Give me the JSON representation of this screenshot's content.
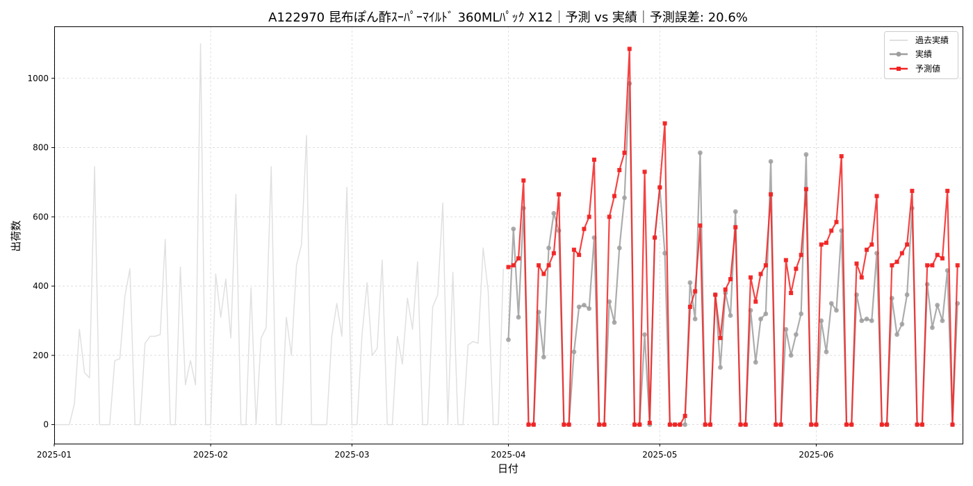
{
  "chart_data": {
    "type": "line",
    "title": "A122970 昆布ぽん酢ｽｰﾊﾟｰﾏｲﾙﾄﾞ 360MLﾊﾟｯｸ X12｜予測 vs 実績｜予測誤差: 20.6%",
    "xlabel": "日付",
    "ylabel": "出荷数",
    "xlim": [
      "2025-01-01",
      "2025-06-30"
    ],
    "ylim": [
      -55,
      1150
    ],
    "x_ticks": [
      "2025-01",
      "2025-02",
      "2025-03",
      "2025-04",
      "2025-05",
      "2025-06"
    ],
    "y_ticks": [
      0,
      200,
      400,
      600,
      800,
      1000
    ],
    "grid": true,
    "legend_position": "top-right",
    "series": [
      {
        "name": "過去実績",
        "color": "#e0e0e0",
        "start": "2025-01-01",
        "values": [
          0,
          0,
          0,
          0,
          60,
          275,
          150,
          135,
          745,
          0,
          0,
          0,
          185,
          190,
          370,
          450,
          0,
          0,
          235,
          255,
          255,
          260,
          535,
          0,
          0,
          455,
          115,
          185,
          115,
          1100,
          0,
          0,
          435,
          310,
          420,
          250,
          665,
          0,
          0,
          395,
          0,
          250,
          280,
          745,
          0,
          0,
          310,
          200,
          460,
          520,
          835,
          0,
          0,
          0,
          0,
          255,
          350,
          255,
          685,
          0,
          0,
          260,
          410,
          200,
          220,
          475,
          0,
          0,
          255,
          175,
          365,
          275,
          470,
          0,
          0,
          340,
          375,
          640,
          0,
          440,
          0,
          0,
          230,
          240,
          235,
          510,
          385,
          0,
          0,
          450
        ]
      },
      {
        "name": "実績",
        "color": "#9e9e9e",
        "marker": "circle",
        "start": "2025-04-01",
        "values": [
          245,
          565,
          310,
          625,
          0,
          0,
          325,
          195,
          510,
          610,
          560,
          0,
          0,
          210,
          340,
          345,
          335,
          540,
          0,
          0,
          355,
          295,
          510,
          655,
          985,
          0,
          0,
          260,
          0,
          540,
          685,
          495,
          0,
          0,
          0,
          0,
          410,
          305,
          785,
          0,
          0,
          375,
          165,
          380,
          315,
          615,
          0,
          0,
          330,
          180,
          305,
          320,
          760,
          0,
          0,
          275,
          200,
          260,
          320,
          780,
          0,
          0,
          300,
          210,
          350,
          330,
          560,
          0,
          0,
          375,
          300,
          305,
          300,
          495,
          0,
          0,
          365,
          260,
          290,
          375,
          625,
          0,
          0,
          405,
          280,
          345,
          300,
          445,
          0,
          350
        ]
      },
      {
        "name": "予測値",
        "color": "#f22222",
        "marker": "square",
        "start": "2025-04-01",
        "values": [
          455,
          460,
          480,
          705,
          0,
          0,
          460,
          435,
          460,
          495,
          665,
          0,
          0,
          505,
          490,
          565,
          600,
          765,
          0,
          0,
          600,
          660,
          735,
          785,
          1085,
          0,
          0,
          730,
          5,
          540,
          685,
          870,
          0,
          0,
          0,
          25,
          340,
          385,
          575,
          0,
          0,
          375,
          250,
          390,
          420,
          570,
          0,
          0,
          425,
          355,
          435,
          460,
          665,
          0,
          0,
          475,
          380,
          450,
          490,
          680,
          0,
          0,
          520,
          525,
          560,
          585,
          775,
          0,
          0,
          465,
          425,
          505,
          520,
          660,
          0,
          0,
          460,
          470,
          495,
          520,
          675,
          0,
          0,
          460,
          460,
          490,
          480,
          675,
          0,
          460
        ]
      }
    ]
  }
}
